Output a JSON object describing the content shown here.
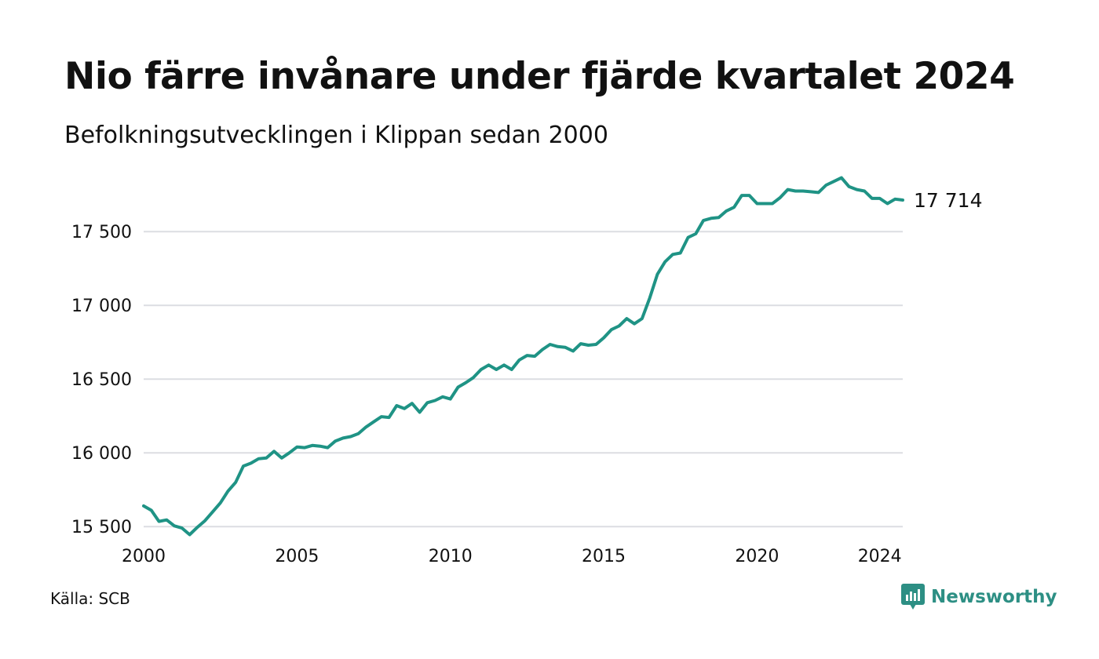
{
  "header": {
    "title": "Nio färre invånare under fjärde kvartalet 2024",
    "subtitle": "Befolkningsutvecklingen i Klippan sedan 2000"
  },
  "footer": {
    "source": "Källa: SCB",
    "brand": "Newsworthy",
    "brand_icon": "newsworthy-logo-icon"
  },
  "colors": {
    "line": "#1f9385",
    "grid": "#dcdde2",
    "brand": "#2d8f84"
  },
  "chart_data": {
    "type": "line",
    "title": "Nio färre invånare under fjärde kvartalet 2024",
    "subtitle": "Befolkningsutvecklingen i Klippan sedan 2000",
    "xlabel": "",
    "ylabel": "",
    "x_ticks": [
      "2000",
      "2005",
      "2010",
      "2015",
      "2020",
      "2024"
    ],
    "y_ticks": [
      "15 500",
      "16 000",
      "16 500",
      "17 000",
      "17 500"
    ],
    "y_tick_values": [
      15500,
      16000,
      16500,
      17000,
      17500
    ],
    "xlim": [
      2000,
      2024.75
    ],
    "ylim": [
      15400,
      17900
    ],
    "grid": true,
    "end_label": "17 714",
    "series": [
      {
        "x": [
          2000,
          2000.25,
          2000.5,
          2000.75,
          2001,
          2001.25,
          2001.5,
          2001.75,
          2002,
          2002.25,
          2002.5,
          2002.75,
          2003,
          2003.25,
          2003.5,
          2003.75,
          2004,
          2004.25,
          2004.5,
          2004.75,
          2005,
          2005.25,
          2005.5,
          2005.75,
          2006,
          2006.25,
          2006.5,
          2006.75,
          2007,
          2007.25,
          2007.5,
          2007.75,
          2008,
          2008.25,
          2008.5,
          2008.75,
          2009,
          2009.25,
          2009.5,
          2009.75,
          2010,
          2010.25,
          2010.5,
          2010.75,
          2011,
          2011.25,
          2011.5,
          2011.75,
          2012,
          2012.25,
          2012.5,
          2012.75,
          2013,
          2013.25,
          2013.5,
          2013.75,
          2014,
          2014.25,
          2014.5,
          2014.75,
          2015,
          2015.25,
          2015.5,
          2015.75,
          2016,
          2016.25,
          2016.5,
          2016.75,
          2017,
          2017.25,
          2017.5,
          2017.75,
          2018,
          2018.25,
          2018.5,
          2018.75,
          2019,
          2019.25,
          2019.5,
          2019.75,
          2020,
          2020.25,
          2020.5,
          2020.75,
          2021,
          2021.25,
          2021.5,
          2021.75,
          2022,
          2022.25,
          2022.5,
          2022.75,
          2023,
          2023.25,
          2023.5,
          2023.75,
          2024,
          2024.25,
          2024.5,
          2024.75
        ],
        "values": [
          15640,
          15610,
          15535,
          15545,
          15505,
          15490,
          15445,
          15495,
          15540,
          15600,
          15660,
          15740,
          15800,
          15910,
          15930,
          15960,
          15965,
          16010,
          15965,
          16000,
          16040,
          16035,
          16050,
          16045,
          16035,
          16080,
          16100,
          16110,
          16130,
          16175,
          16210,
          16245,
          16240,
          16320,
          16300,
          16335,
          16275,
          16340,
          16355,
          16380,
          16365,
          16445,
          16475,
          16510,
          16565,
          16595,
          16565,
          16595,
          16565,
          16630,
          16660,
          16655,
          16700,
          16735,
          16720,
          16715,
          16690,
          16740,
          16730,
          16735,
          16780,
          16835,
          16860,
          16910,
          16875,
          16910,
          17050,
          17210,
          17295,
          17345,
          17355,
          17460,
          17485,
          17575,
          17590,
          17595,
          17640,
          17665,
          17745,
          17745,
          17690,
          17690,
          17690,
          17730,
          17785,
          17775,
          17775,
          17770,
          17765,
          17815,
          17840,
          17865,
          17805,
          17785,
          17775,
          17725,
          17725,
          17690,
          17720,
          17714
        ]
      }
    ]
  }
}
